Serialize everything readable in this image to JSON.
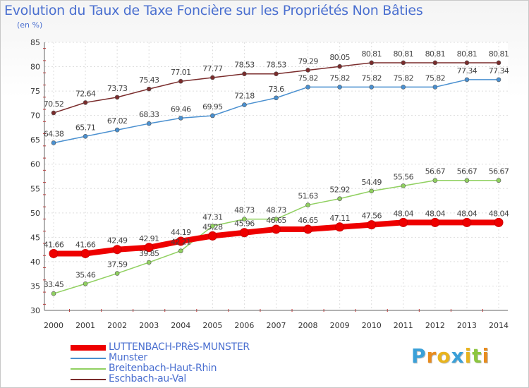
{
  "title": "Evolution du Taux de Taxe Foncière sur les Propriétés Non Bâties",
  "unit_label": "(en %)",
  "brand": {
    "letters": [
      "P",
      "r",
      "o",
      "x",
      "i",
      "t",
      "i"
    ],
    "colors": [
      "#3aa0d8",
      "#e88c1e",
      "#e8b41e",
      "#3aa0d8",
      "#e8b41e",
      "#8cc63f",
      "#e88c1e"
    ]
  },
  "chart_data": {
    "type": "line",
    "title": "Evolution du Taux de Taxe Foncière sur les Propriétés Non Bâties",
    "ylabel": "(en %)",
    "xlabel": "",
    "ylim": [
      30,
      85
    ],
    "yticks": [
      30,
      35,
      40,
      45,
      50,
      55,
      60,
      65,
      70,
      75,
      80,
      85
    ],
    "x": [
      "2000",
      "2001",
      "2002",
      "2003",
      "2004",
      "2005",
      "2006",
      "2007",
      "2008",
      "2009",
      "2010",
      "2011",
      "2012",
      "2013",
      "2014"
    ],
    "series": [
      {
        "name": "Eschbach-au-Val",
        "color": "#7a2c2c",
        "values": [
          70.52,
          72.64,
          73.73,
          75.43,
          77.01,
          77.77,
          78.53,
          78.53,
          79.29,
          80.05,
          80.81,
          80.81,
          80.81,
          80.81,
          80.81
        ],
        "labels": [
          "70.52",
          "72.64",
          "73.73",
          "75.43",
          "77.01",
          "77.77",
          "78.53",
          "78.53",
          "79.29",
          "80.05",
          "80.81",
          "80.81",
          "80.81",
          "80.81",
          "80.81"
        ]
      },
      {
        "name": "Munster",
        "color": "#4a90d0",
        "values": [
          64.38,
          65.71,
          67.02,
          68.33,
          69.46,
          69.95,
          72.18,
          73.6,
          75.82,
          75.82,
          75.82,
          75.82,
          75.82,
          77.34,
          77.34
        ],
        "labels": [
          "64.38",
          "65.71",
          "67.02",
          "68.33",
          "69.46",
          "69.95",
          "72.18",
          "73.6",
          "75.82",
          "75.82",
          "75.82",
          "75.82",
          "75.82",
          "77.34",
          "77.34"
        ]
      },
      {
        "name": "Breitenbach-Haut-Rhin",
        "color": "#90d060",
        "values": [
          33.45,
          35.46,
          37.59,
          39.85,
          42.21,
          47.31,
          48.73,
          48.73,
          51.63,
          52.92,
          54.49,
          55.56,
          56.67,
          56.67,
          56.67
        ],
        "labels": [
          "33.45",
          "35.46",
          "37.59",
          "39.85",
          "42.21",
          "47.31",
          "48.73",
          "48.73",
          "51.63",
          "52.92",
          "54.49",
          "55.56",
          "56.67",
          "56.67",
          "56.67"
        ]
      },
      {
        "name": "LUTTENBACH-PRèS-MUNSTER",
        "color": "#ee0000",
        "values": [
          41.66,
          41.66,
          42.49,
          42.91,
          44.19,
          45.28,
          45.96,
          46.65,
          46.65,
          47.11,
          47.56,
          48.04,
          48.04,
          48.04,
          48.04
        ],
        "labels": [
          "41.66",
          "41.66",
          "42.49",
          "42.91",
          "44.19",
          "45.28",
          "45.96",
          "46.65",
          "46.65",
          "47.11",
          "47.56",
          "48.04",
          "48.04",
          "48.04",
          "48.04"
        ]
      }
    ],
    "legend": [
      "LUTTENBACH-PRèS-MUNSTER",
      "Munster",
      "Breitenbach-Haut-Rhin",
      "Eschbach-au-Val"
    ],
    "legend_placement": "bottom-left"
  }
}
